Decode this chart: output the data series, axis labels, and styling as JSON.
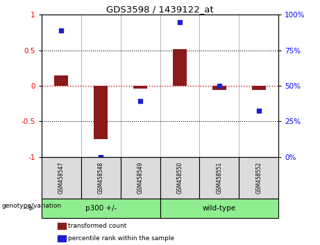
{
  "title": "GDS3598 / 1439122_at",
  "samples": [
    "GSM458547",
    "GSM458548",
    "GSM458549",
    "GSM458550",
    "GSM458551",
    "GSM458552"
  ],
  "transformed_count": [
    0.15,
    -0.75,
    -0.04,
    0.52,
    -0.06,
    -0.06
  ],
  "percentile_rank_scaled": [
    0.78,
    -1.0,
    -0.22,
    0.9,
    0.0,
    -0.35
  ],
  "group_info": [
    {
      "label": "p300 +/-",
      "start": 0,
      "end": 2
    },
    {
      "label": "wild-type",
      "start": 3,
      "end": 5
    }
  ],
  "group_color": "#90EE90",
  "bar_color": "#8B1A1A",
  "dot_color": "#1F1FCC",
  "zero_line_color": "#CC0000",
  "bg_color": "#DCDCDC",
  "ylim": [
    -1.0,
    1.0
  ],
  "ytick_vals": [
    -1.0,
    -0.5,
    0.0,
    0.5,
    1.0
  ],
  "ytick_labels": [
    "-1",
    "-0.5",
    "0",
    "0.5",
    "1"
  ],
  "right_ytick_labels": [
    "0%",
    "25%",
    "50%",
    "75%",
    "100%"
  ],
  "dotted_lines": [
    -0.5,
    0.5
  ],
  "bar_width": 0.35,
  "legend": [
    {
      "color": "#8B1A1A",
      "label": "transformed count"
    },
    {
      "color": "#1F1FCC",
      "label": "percentile rank within the sample"
    }
  ]
}
